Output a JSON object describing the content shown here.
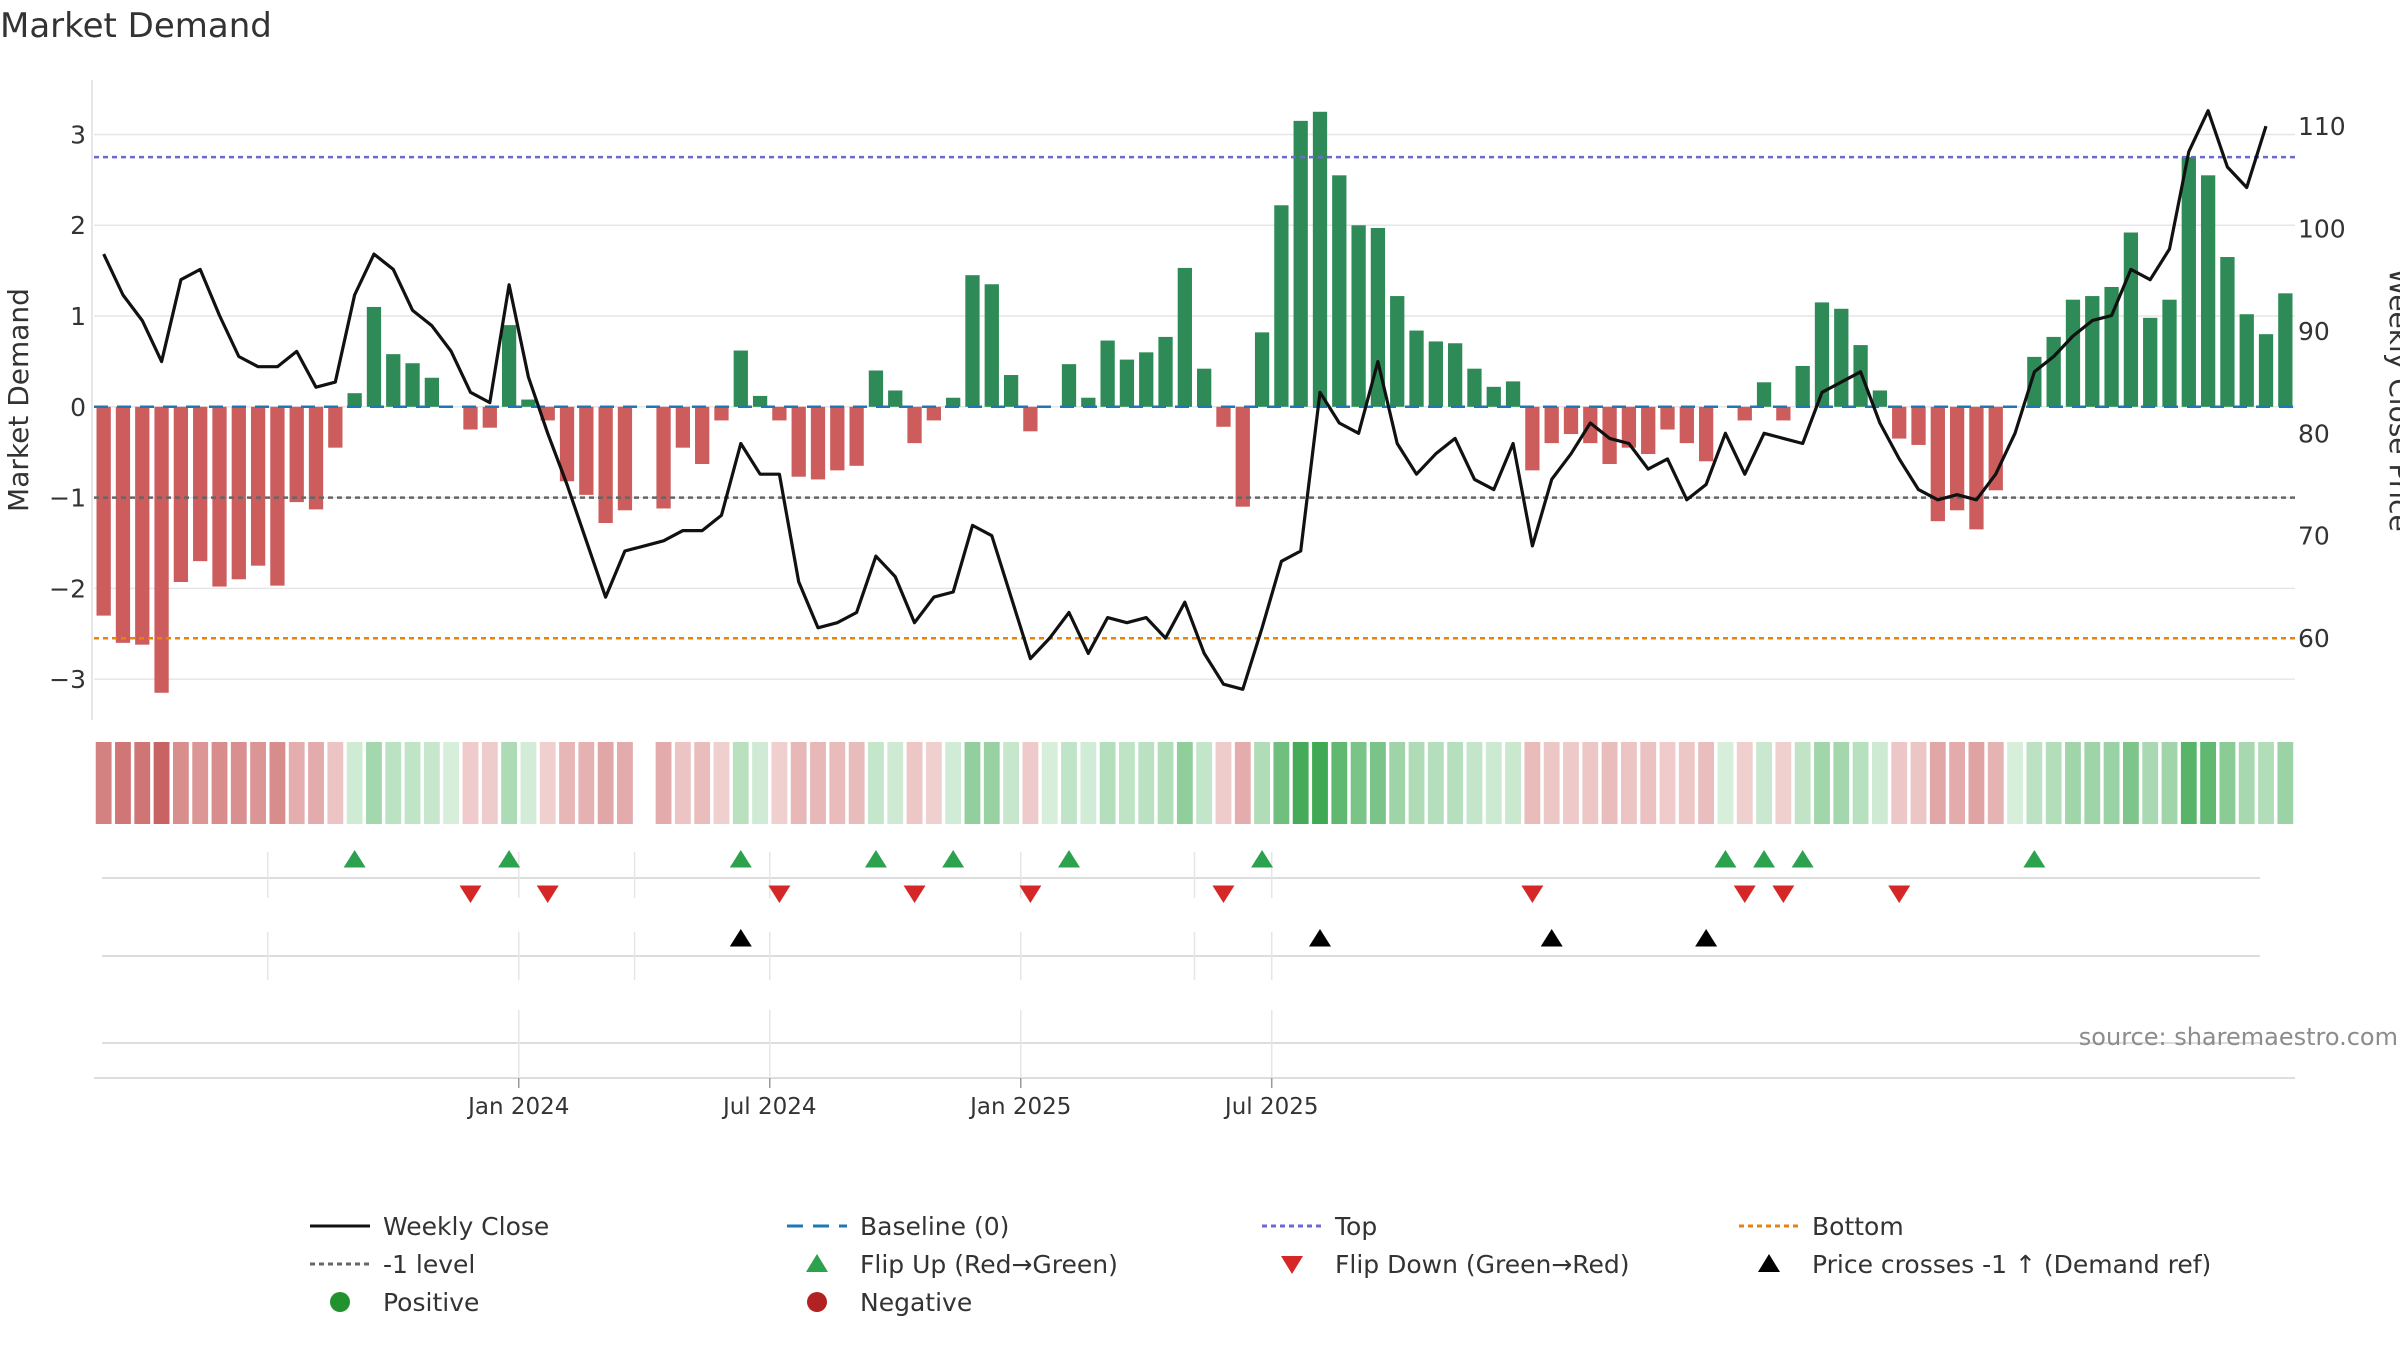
{
  "chart_data": {
    "type": "bar",
    "title": "Market Demand",
    "ylabel_left": "Market Demand",
    "ylabel_right": "Weekly Close Price",
    "source": "source: sharemaestro.com",
    "ylim_left": [
      -3.45,
      3.6
    ],
    "ylim_right": [
      52.0,
      114.5
    ],
    "left_ticks": [
      -3,
      -2,
      -1,
      0,
      1,
      2,
      3
    ],
    "left_tick_labels": [
      "−3",
      "−2",
      "−1",
      "0",
      "1",
      "2",
      "3"
    ],
    "right_ticks": [
      60,
      70,
      80,
      90,
      100,
      110
    ],
    "right_tick_labels": [
      "60",
      "70",
      "80",
      "90",
      "100",
      "110"
    ],
    "x_ticks": [
      22,
      35,
      48,
      61
    ],
    "x_tick_labels": [
      "Jan 2024",
      "Jul 2024",
      "Jan 2025",
      "Jul 2025"
    ],
    "x_minor_ticks": [
      9,
      22,
      28,
      35,
      48,
      57,
      61
    ],
    "levels": {
      "top": 2.75,
      "bottom": -2.55,
      "minus_one": -1,
      "baseline": 0
    },
    "demand": [
      -2.3,
      -2.6,
      -2.62,
      -3.15,
      -1.93,
      -1.7,
      -1.98,
      -1.9,
      -1.75,
      -1.97,
      -1.05,
      -1.13,
      -0.45,
      0.15,
      1.1,
      0.58,
      0.48,
      0.32,
      0,
      -0.25,
      -0.23,
      0.9,
      0.08,
      -0.15,
      -0.82,
      -0.97,
      -1.28,
      -1.14,
      null,
      -1.12,
      -0.45,
      -0.63,
      -0.15,
      0.62,
      0.12,
      -0.15,
      -0.77,
      -0.8,
      -0.7,
      -0.65,
      0.4,
      0.18,
      -0.4,
      -0.15,
      0.1,
      1.45,
      1.35,
      0.35,
      -0.27,
      0,
      0.47,
      0.1,
      0.73,
      0.52,
      0.6,
      0.77,
      1.53,
      0.42,
      -0.22,
      -1.1,
      0.82,
      2.22,
      3.15,
      3.25,
      2.55,
      2,
      1.97,
      1.22,
      0.84,
      0.72,
      0.7,
      0.42,
      0.22,
      0.28,
      -0.7,
      -0.4,
      -0.3,
      -0.4,
      -0.63,
      -0.45,
      -0.52,
      -0.25,
      -0.4,
      -0.6,
      0,
      -0.15,
      0.27,
      -0.15,
      0.45,
      1.15,
      1.08,
      0.68,
      0.18,
      -0.35,
      -0.42,
      -1.26,
      -1.14,
      -1.35,
      -0.92,
      0,
      0.55,
      0.77,
      1.18,
      1.22,
      1.32,
      1.92,
      0.98,
      1.18,
      2.75,
      2.55,
      1.65,
      1.02,
      0.8,
      1.25
    ],
    "close": [
      97.5,
      93.5,
      91,
      87,
      95,
      96,
      91.5,
      87.5,
      86.5,
      86.5,
      88,
      84.5,
      85,
      93.5,
      97.5,
      96,
      92,
      90.5,
      88,
      84,
      83,
      94.5,
      85.5,
      80,
      75,
      69.5,
      64,
      68.5,
      69,
      69.5,
      70.5,
      70.5,
      72,
      79,
      76,
      76,
      65.5,
      61,
      61.5,
      62.5,
      68,
      66,
      61.5,
      64,
      64.5,
      71,
      70,
      64,
      58,
      60,
      62.5,
      58.5,
      62,
      61.5,
      62,
      60,
      63.5,
      58.5,
      55.5,
      55,
      61,
      67.5,
      68.5,
      84,
      81,
      80,
      87,
      79,
      76,
      78,
      79.5,
      75.5,
      74.5,
      79,
      69,
      75.5,
      78,
      81,
      79.5,
      79,
      76.5,
      77.5,
      73.5,
      75,
      80,
      76,
      80,
      79.5,
      79,
      84,
      85,
      86,
      81,
      77.5,
      74.5,
      73.5,
      74,
      73.5,
      76,
      80,
      86,
      87.5,
      89.5,
      91,
      91.5,
      96,
      95,
      98,
      107.5,
      111.5,
      106,
      104,
      110
    ],
    "flip_up": [
      13,
      21,
      33,
      40,
      44,
      50,
      60,
      84,
      86,
      88,
      100
    ],
    "flip_down": [
      19,
      23,
      35,
      42,
      48,
      58,
      74,
      85,
      87,
      93
    ],
    "cross_up": [
      33,
      63,
      75,
      83
    ],
    "legend": [
      {
        "label": "Weekly Close",
        "kind": "line",
        "color": "#111111"
      },
      {
        "label": "Baseline (0)",
        "kind": "dash",
        "color": "#1f77b4"
      },
      {
        "label": "Top",
        "kind": "dot",
        "color": "#6a6ad0"
      },
      {
        "label": "Bottom",
        "kind": "dot",
        "color": "#e6830f"
      },
      {
        "label": "-1 level",
        "kind": "dot",
        "color": "#666666"
      },
      {
        "label": "Flip Up (Red→Green)",
        "kind": "tri-up",
        "color": "#2ca24e"
      },
      {
        "label": "Flip Down (Green→Red)",
        "kind": "tri-down",
        "color": "#d62728"
      },
      {
        "label": "Price crosses -1 ↑ (Demand ref)",
        "kind": "tri-up",
        "color": "#000000"
      },
      {
        "label": "Positive",
        "kind": "circle",
        "color": "#22922f"
      },
      {
        "label": "Negative",
        "kind": "circle",
        "color": "#b22222"
      }
    ],
    "colors": {
      "positive_bar": "#2e8b57",
      "negative_bar": "#cd5c5c",
      "price_line": "#111111",
      "baseline": "#1f77b4",
      "top": "#6a6ad0",
      "bottom": "#e6830f",
      "minus_one": "#666666",
      "flip_up": "#2ca24e",
      "flip_down": "#d62728",
      "cross": "#000000",
      "grid": "#e6e6e6"
    }
  }
}
